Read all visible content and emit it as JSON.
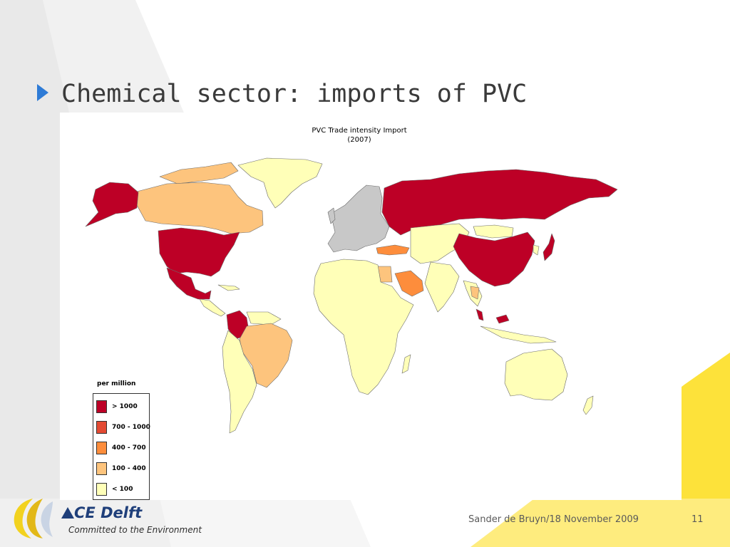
{
  "slide": {
    "title": "Chemical sector: imports of PVC",
    "footer_author_date": "Sander de Bruyn/18 November 2009",
    "page_number": "11"
  },
  "logo": {
    "brand": "CE Delft",
    "tagline": "Committed to the Environment"
  },
  "map": {
    "title_line1": "PVC Trade intensity Import",
    "title_line2": "(2007)",
    "legend": {
      "title": "per million",
      "items": [
        {
          "label": "> 1000",
          "color": "#bd0026"
        },
        {
          "label": "700 - 1000",
          "color": "#e34a33"
        },
        {
          "label": "400 - 700",
          "color": "#fd8d3c"
        },
        {
          "label": "100 - 400",
          "color": "#fdc47d"
        },
        {
          "label": "< 100",
          "color": "#ffffb8"
        }
      ]
    },
    "no_data_color": "#c8c8c8",
    "regions": [
      {
        "name": "USA",
        "class": "> 1000"
      },
      {
        "name": "Mexico",
        "class": "> 1000"
      },
      {
        "name": "Colombia",
        "class": "> 1000"
      },
      {
        "name": "Alaska",
        "class": "> 1000"
      },
      {
        "name": "Russia",
        "class": "> 1000"
      },
      {
        "name": "China",
        "class": "> 1000"
      },
      {
        "name": "Japan",
        "class": "> 1000"
      },
      {
        "name": "Malaysia",
        "class": "> 1000"
      },
      {
        "name": "Turkey",
        "class": "400 - 700"
      },
      {
        "name": "Saudi Arabia",
        "class": "400 - 700"
      },
      {
        "name": "Canada",
        "class": "100 - 400"
      },
      {
        "name": "Brazil",
        "class": "100 - 400"
      },
      {
        "name": "Egypt",
        "class": "100 - 400"
      },
      {
        "name": "Thailand",
        "class": "100 - 400"
      },
      {
        "name": "Greenland",
        "class": "< 100"
      },
      {
        "name": "Africa",
        "class": "< 100"
      },
      {
        "name": "Australia",
        "class": "< 100"
      },
      {
        "name": "India",
        "class": "< 100"
      },
      {
        "name": "Mongolia",
        "class": "< 100"
      },
      {
        "name": "South America (other)",
        "class": "< 100"
      },
      {
        "name": "Europe",
        "class": "no data"
      }
    ]
  }
}
